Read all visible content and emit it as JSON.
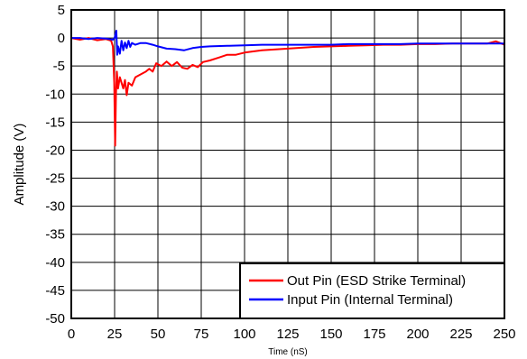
{
  "chart_data": {
    "type": "line",
    "title": "",
    "xlabel": "Time (nS)",
    "ylabel": "Amplitude (V)",
    "xlim": [
      0,
      250
    ],
    "ylim": [
      -50,
      5
    ],
    "x_ticks": [
      0,
      25,
      50,
      75,
      100,
      125,
      150,
      175,
      200,
      225,
      250
    ],
    "y_ticks": [
      5,
      0,
      -5,
      -10,
      -15,
      -20,
      -25,
      -30,
      -35,
      -40,
      -45,
      -50
    ],
    "grid": true,
    "legend_position": "bottom-right",
    "series": [
      {
        "name": "Out Pin (ESD Strike Terminal)",
        "color": "#ff0000",
        "points": [
          [
            0,
            0
          ],
          [
            5,
            -0.3
          ],
          [
            10,
            0
          ],
          [
            15,
            -0.4
          ],
          [
            20,
            -0.2
          ],
          [
            23,
            -0.5
          ],
          [
            24,
            -1.5
          ],
          [
            24.8,
            -8
          ],
          [
            25.3,
            -19.2
          ],
          [
            25.8,
            -10
          ],
          [
            26.3,
            -6
          ],
          [
            27,
            -9
          ],
          [
            28,
            -7
          ],
          [
            29,
            -8
          ],
          [
            30,
            -9
          ],
          [
            31,
            -7.5
          ],
          [
            32,
            -10.2
          ],
          [
            33,
            -8
          ],
          [
            35,
            -8.5
          ],
          [
            37,
            -7
          ],
          [
            40,
            -6.5
          ],
          [
            43,
            -6
          ],
          [
            45,
            -5.5
          ],
          [
            47,
            -6
          ],
          [
            49,
            -4.5
          ],
          [
            52,
            -5
          ],
          [
            55,
            -4.2
          ],
          [
            58,
            -5
          ],
          [
            61,
            -4.3
          ],
          [
            64,
            -5.3
          ],
          [
            67,
            -5.5
          ],
          [
            70,
            -4.8
          ],
          [
            73,
            -5.2
          ],
          [
            76,
            -4.3
          ],
          [
            80,
            -4
          ],
          [
            85,
            -3.5
          ],
          [
            90,
            -3
          ],
          [
            95,
            -3
          ],
          [
            100,
            -2.6
          ],
          [
            110,
            -2.2
          ],
          [
            120,
            -2
          ],
          [
            130,
            -1.8
          ],
          [
            140,
            -1.6
          ],
          [
            150,
            -1.5
          ],
          [
            160,
            -1.4
          ],
          [
            170,
            -1.3
          ],
          [
            180,
            -1.2
          ],
          [
            190,
            -1.2
          ],
          [
            200,
            -1.1
          ],
          [
            210,
            -1.1
          ],
          [
            220,
            -1.0
          ],
          [
            230,
            -1.0
          ],
          [
            240,
            -1.0
          ],
          [
            245,
            -0.6
          ],
          [
            250,
            -1.2
          ]
        ]
      },
      {
        "name": "Input Pin (Internal Terminal)",
        "color": "#0000ff",
        "points": [
          [
            0,
            0
          ],
          [
            5,
            0
          ],
          [
            10,
            -0.2
          ],
          [
            15,
            0
          ],
          [
            20,
            -0.1
          ],
          [
            24,
            -0.3
          ],
          [
            25,
            0
          ],
          [
            26,
            1.3
          ],
          [
            26.5,
            -3
          ],
          [
            27,
            -1.5
          ],
          [
            28,
            -2.8
          ],
          [
            29,
            -0.5
          ],
          [
            30,
            -2.2
          ],
          [
            31,
            -0.8
          ],
          [
            32,
            -1.8
          ],
          [
            33,
            -0.5
          ],
          [
            34,
            -1.6
          ],
          [
            35,
            -0.9
          ],
          [
            37,
            -1.2
          ],
          [
            40,
            -0.9
          ],
          [
            43,
            -0.9
          ],
          [
            47,
            -1.2
          ],
          [
            50,
            -1.5
          ],
          [
            55,
            -1.9
          ],
          [
            60,
            -2.0
          ],
          [
            65,
            -2.2
          ],
          [
            70,
            -1.8
          ],
          [
            75,
            -1.6
          ],
          [
            80,
            -1.5
          ],
          [
            90,
            -1.4
          ],
          [
            100,
            -1.3
          ],
          [
            110,
            -1.2
          ],
          [
            120,
            -1.2
          ],
          [
            130,
            -1.2
          ],
          [
            140,
            -1.2
          ],
          [
            150,
            -1.2
          ],
          [
            160,
            -1.1
          ],
          [
            170,
            -1.1
          ],
          [
            180,
            -1.1
          ],
          [
            190,
            -1.1
          ],
          [
            200,
            -1.0
          ],
          [
            210,
            -1.0
          ],
          [
            220,
            -1.0
          ],
          [
            230,
            -1.0
          ],
          [
            240,
            -1.0
          ],
          [
            250,
            -1.0
          ]
        ]
      }
    ]
  }
}
